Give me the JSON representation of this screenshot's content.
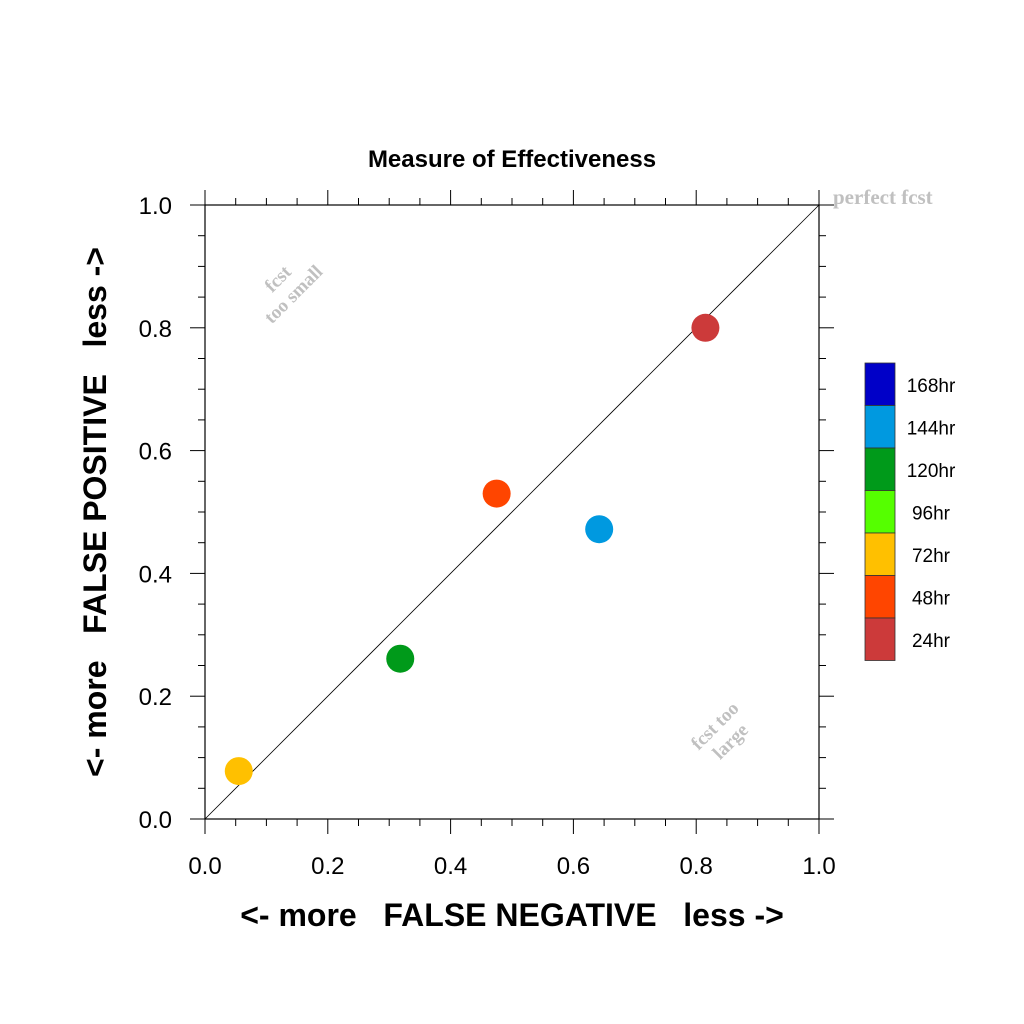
{
  "chart_data": {
    "type": "scatter",
    "title": "Measure of Effectiveness",
    "xlabel": "<- more   FALSE NEGATIVE   less ->",
    "ylabel": "<- more   FALSE POSITIVE   less ->",
    "xlim": [
      0.0,
      1.0
    ],
    "ylim": [
      0.0,
      1.0
    ],
    "x_ticks": [
      "0.0",
      "0.2",
      "0.4",
      "0.6",
      "0.8",
      "1.0"
    ],
    "y_ticks": [
      "0.0",
      "0.2",
      "0.4",
      "0.6",
      "0.8",
      "1.0"
    ],
    "grid": false,
    "diagonal_line": true,
    "annotations": {
      "perfect": "perfect fcst",
      "too_small": [
        "fcst",
        "too small"
      ],
      "too_large": [
        "fcst too",
        "large"
      ]
    },
    "points": [
      {
        "label": "24hr",
        "x": 0.815,
        "y": 0.8,
        "color": "#cc3a3a"
      },
      {
        "label": "48hr",
        "x": 0.475,
        "y": 0.53,
        "color": "#ff4500"
      },
      {
        "label": "72hr",
        "x": 0.055,
        "y": 0.078,
        "color": "#ffc000"
      },
      {
        "label": "120hr",
        "x": 0.318,
        "y": 0.261,
        "color": "#009a1a"
      },
      {
        "label": "144hr",
        "x": 0.642,
        "y": 0.472,
        "color": "#0099e0"
      }
    ],
    "legend": {
      "placement": "right",
      "entries": [
        {
          "label": "168hr",
          "color": "#0000c8"
        },
        {
          "label": "144hr",
          "color": "#0099e0"
        },
        {
          "label": "120hr",
          "color": "#009a1a"
        },
        {
          "label": "96hr",
          "color": "#55ff00"
        },
        {
          "label": "72hr",
          "color": "#ffc000"
        },
        {
          "label": "48hr",
          "color": "#ff4500"
        },
        {
          "label": "24hr",
          "color": "#cc3a3a"
        }
      ]
    },
    "annotation_color": "#c0c0c0"
  }
}
